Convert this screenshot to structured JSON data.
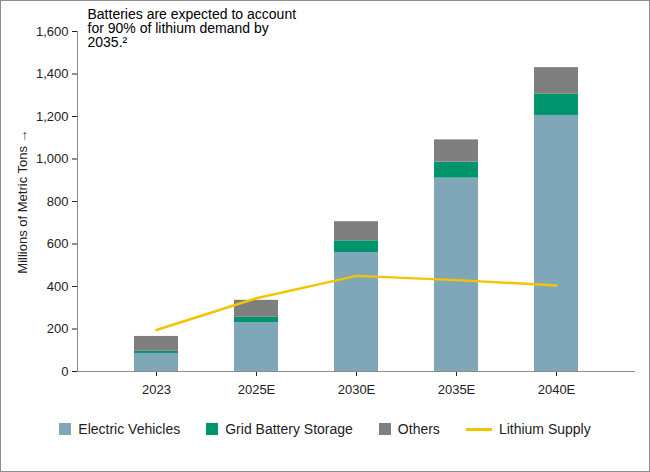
{
  "chart_data": {
    "type": "bar",
    "stacked": true,
    "annotation": "Batteries are expected to account for 90% of lithium demand by 2035.²",
    "y_label": "Millions of Metric Tons",
    "categories": [
      "2023",
      "2025E",
      "2030E",
      "2035E",
      "2040E"
    ],
    "series": [
      {
        "name": "Electric Vehicles",
        "color": "#7fa7b7",
        "type": "bar",
        "values": [
          85,
          230,
          560,
          910,
          1205
        ]
      },
      {
        "name": "Grid Battery Storage",
        "color": "#00946c",
        "type": "bar",
        "values": [
          10,
          25,
          55,
          75,
          100
        ]
      },
      {
        "name": "Others",
        "color": "#7f7f7f",
        "type": "bar",
        "values": [
          70,
          80,
          90,
          105,
          125
        ]
      },
      {
        "name": "Lithium Supply",
        "color": "#f5c400",
        "type": "line",
        "values": [
          195,
          345,
          450,
          430,
          405
        ]
      }
    ],
    "ylim": [
      0,
      1600
    ],
    "yticks": [
      0,
      200,
      400,
      600,
      800,
      {
        "value": 1000,
        "label": "1,000"
      },
      {
        "value": 1200,
        "label": "1,200"
      },
      {
        "value": 1400,
        "label": "1,400"
      },
      {
        "value": 1600,
        "label": "1,600"
      }
    ],
    "grid": false,
    "legend": "bottom"
  }
}
